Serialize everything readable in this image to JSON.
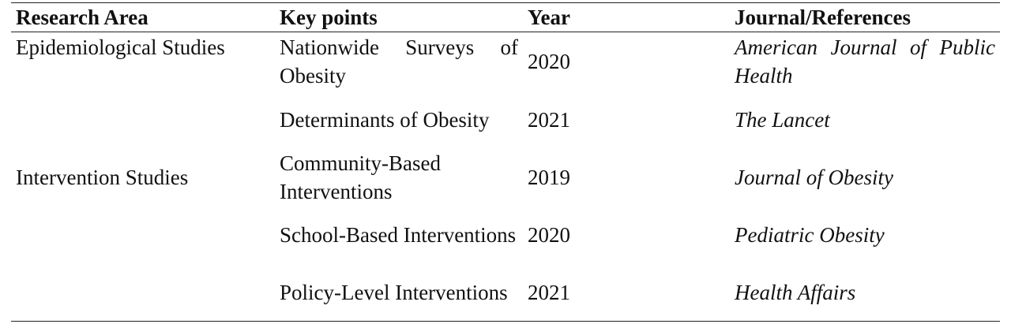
{
  "table": {
    "headers": [
      "Research Area",
      "Key points",
      "Year",
      "Journal/References"
    ],
    "rows": [
      [
        "Epidemiological Studies",
        "Nationwide Surveys of Obesity",
        2020,
        "American Journal of Public Health"
      ],
      [
        null,
        "Determinants of Obesity",
        2021,
        "The Lancet"
      ],
      [
        "Intervention Studies",
        "Community-Based Interventions",
        2019,
        "Journal of Obesity"
      ],
      [
        null,
        "School-Based Interventions",
        2020,
        "Pediatric Obesity"
      ],
      [
        null,
        "Policy-Level Interventions",
        2021,
        "Health Affairs"
      ]
    ]
  }
}
